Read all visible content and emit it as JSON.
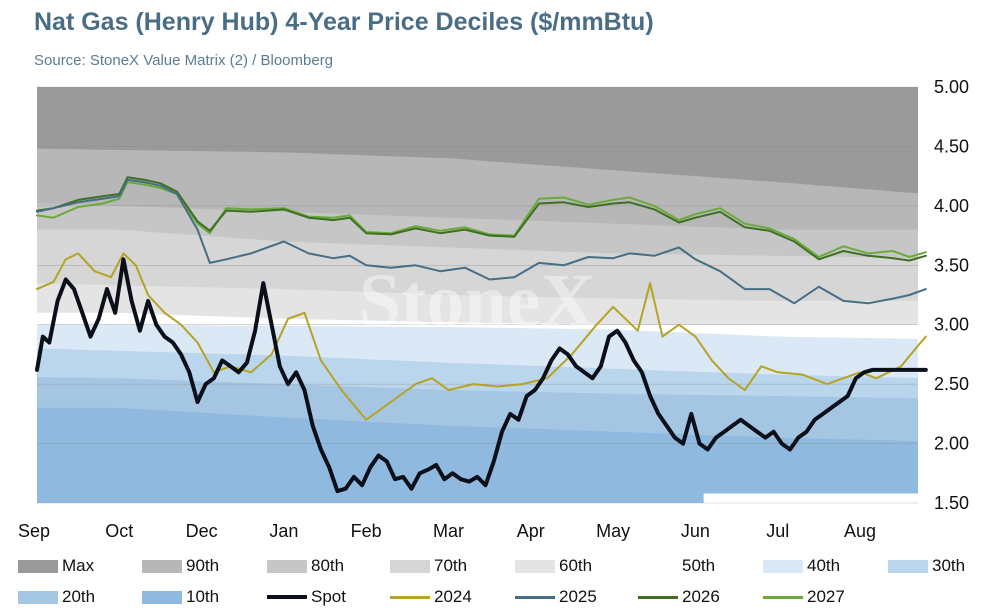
{
  "title": "Nat Gas (Henry Hub) 4-Year Price Deciles ($/mmBtu)",
  "subtitle": "Source: StoneX Value Matrix (2) / Bloomberg",
  "watermark": "StoneX",
  "chart_data": {
    "type": "area",
    "x_months": [
      "Sep",
      "Oct",
      "Dec",
      "Jan",
      "Feb",
      "Mar",
      "Apr",
      "May",
      "Jun",
      "Jul",
      "Aug"
    ],
    "x_month_positions": [
      0,
      1,
      2,
      3,
      4,
      5,
      6,
      7,
      8,
      9,
      10
    ],
    "y_ticks": [
      "5.00",
      "4.50",
      "4.00",
      "3.50",
      "3.00",
      "2.50",
      "2.00",
      "1.50"
    ],
    "ylim": [
      1.5,
      5.0
    ],
    "grid": true,
    "legend_position": "bottom",
    "deciles": [
      {
        "name": "Max",
        "color": "#9a9a9a",
        "x": [
          0,
          10.8
        ],
        "values": [
          5.0,
          5.0
        ]
      },
      {
        "name": "90th",
        "color": "#b7b7b7",
        "x": [
          0,
          1,
          3,
          5,
          7,
          9,
          10.8
        ],
        "values": [
          4.48,
          4.47,
          4.45,
          4.4,
          4.3,
          4.2,
          4.1
        ]
      },
      {
        "name": "80th",
        "color": "#c6c6c6",
        "x": [
          0,
          1,
          3,
          5,
          7,
          9,
          10.8
        ],
        "values": [
          4.02,
          4.0,
          3.95,
          3.9,
          3.85,
          3.8,
          3.8
        ]
      },
      {
        "name": "70th",
        "color": "#d6d6d6",
        "x": [
          0,
          1,
          3,
          5,
          7,
          9,
          10.8
        ],
        "values": [
          3.8,
          3.8,
          3.7,
          3.65,
          3.6,
          3.58,
          3.56
        ]
      },
      {
        "name": "60th",
        "color": "#e4e4e4",
        "x": [
          0,
          1,
          3,
          5,
          7,
          9,
          10.8
        ],
        "values": [
          3.35,
          3.33,
          3.3,
          3.25,
          3.22,
          3.2,
          3.2
        ]
      },
      {
        "name": "50th",
        "color": "#ffffff",
        "x": [
          0,
          1,
          3,
          5,
          7,
          9,
          10.8
        ],
        "values": [
          3.1,
          3.1,
          3.05,
          3.02,
          3.0,
          3.0,
          3.0
        ]
      },
      {
        "name": "40th",
        "color": "#dbe8f5",
        "x": [
          0,
          1,
          3,
          5,
          7,
          9,
          10.8
        ],
        "values": [
          3.0,
          3.0,
          2.99,
          2.98,
          2.96,
          2.9,
          2.88
        ]
      },
      {
        "name": "30th",
        "color": "#bad6ec",
        "x": [
          0,
          1,
          3,
          5,
          7,
          9,
          10.8
        ],
        "values": [
          2.8,
          2.78,
          2.74,
          2.68,
          2.63,
          2.58,
          2.55
        ]
      },
      {
        "name": "20th",
        "color": "#a5c6e3",
        "x": [
          0,
          1,
          3,
          5,
          7,
          9,
          10.8
        ],
        "values": [
          2.56,
          2.55,
          2.5,
          2.45,
          2.42,
          2.4,
          2.38
        ]
      },
      {
        "name": "10th",
        "color": "#8fb9de",
        "x": [
          0,
          1,
          3,
          5,
          7,
          9,
          10.8
        ],
        "values": [
          2.3,
          2.3,
          2.22,
          2.15,
          2.1,
          2.05,
          2.02
        ]
      }
    ],
    "min_floor": {
      "color": "#ffffff",
      "x": [
        8.1,
        10.8
      ],
      "values": [
        1.58,
        1.58
      ]
    },
    "series": [
      {
        "name": "2027",
        "color": "#6aaa3a",
        "width": 2,
        "x": [
          0,
          0.2,
          0.5,
          0.8,
          1.0,
          1.1,
          1.3,
          1.5,
          1.7,
          1.95,
          2.1,
          2.3,
          2.6,
          3.0,
          3.3,
          3.6,
          3.8,
          4.0,
          4.3,
          4.6,
          4.9,
          5.2,
          5.5,
          5.8,
          6.1,
          6.4,
          6.7,
          7.0,
          7.2,
          7.5,
          7.8,
          8.0,
          8.3,
          8.6,
          8.9,
          9.2,
          9.5,
          9.8,
          10.1,
          10.4,
          10.6,
          10.8
        ],
        "values": [
          3.92,
          3.9,
          3.99,
          4.02,
          4.06,
          4.2,
          4.18,
          4.15,
          4.1,
          3.85,
          3.77,
          3.98,
          3.97,
          3.98,
          3.91,
          3.9,
          3.92,
          3.78,
          3.77,
          3.83,
          3.79,
          3.82,
          3.76,
          3.75,
          4.06,
          4.07,
          4.01,
          4.05,
          4.07,
          4.0,
          3.88,
          3.93,
          3.98,
          3.85,
          3.81,
          3.72,
          3.57,
          3.66,
          3.6,
          3.62,
          3.57,
          3.61
        ]
      },
      {
        "name": "2026",
        "color": "#3f6e25",
        "width": 2,
        "x": [
          0,
          0.2,
          0.5,
          0.8,
          1.0,
          1.1,
          1.3,
          1.5,
          1.7,
          1.95,
          2.1,
          2.3,
          2.6,
          3.0,
          3.3,
          3.6,
          3.8,
          4.0,
          4.3,
          4.6,
          4.9,
          5.2,
          5.5,
          5.8,
          6.1,
          6.4,
          6.7,
          7.0,
          7.2,
          7.5,
          7.8,
          8.0,
          8.3,
          8.6,
          8.9,
          9.2,
          9.5,
          9.8,
          10.1,
          10.4,
          10.6,
          10.8
        ],
        "values": [
          3.96,
          3.98,
          4.05,
          4.08,
          4.1,
          4.24,
          4.22,
          4.19,
          4.12,
          3.87,
          3.79,
          3.96,
          3.95,
          3.97,
          3.9,
          3.88,
          3.9,
          3.77,
          3.76,
          3.81,
          3.77,
          3.8,
          3.75,
          3.74,
          4.02,
          4.03,
          3.99,
          4.02,
          4.03,
          3.97,
          3.86,
          3.9,
          3.95,
          3.82,
          3.79,
          3.7,
          3.55,
          3.62,
          3.58,
          3.56,
          3.54,
          3.58
        ]
      },
      {
        "name": "2025",
        "color": "#466e85",
        "width": 2,
        "x": [
          0,
          0.2,
          0.5,
          0.8,
          1.0,
          1.1,
          1.3,
          1.5,
          1.7,
          1.95,
          2.1,
          2.3,
          2.6,
          3.0,
          3.3,
          3.6,
          3.8,
          4.0,
          4.3,
          4.6,
          4.9,
          5.2,
          5.5,
          5.8,
          6.1,
          6.4,
          6.7,
          7.0,
          7.2,
          7.5,
          7.8,
          8.0,
          8.3,
          8.6,
          8.9,
          9.2,
          9.5,
          9.8,
          10.1,
          10.4,
          10.6,
          10.8
        ],
        "values": [
          3.95,
          3.98,
          4.03,
          4.06,
          4.08,
          4.22,
          4.2,
          4.17,
          4.1,
          3.8,
          3.52,
          3.55,
          3.6,
          3.7,
          3.6,
          3.56,
          3.58,
          3.5,
          3.48,
          3.5,
          3.45,
          3.48,
          3.38,
          3.4,
          3.52,
          3.5,
          3.57,
          3.56,
          3.6,
          3.58,
          3.65,
          3.55,
          3.45,
          3.3,
          3.3,
          3.18,
          3.32,
          3.2,
          3.18,
          3.22,
          3.25,
          3.3
        ]
      },
      {
        "name": "2024",
        "color": "#b5a325",
        "width": 2,
        "x": [
          0,
          0.2,
          0.35,
          0.5,
          0.7,
          0.9,
          1.05,
          1.2,
          1.35,
          1.55,
          1.75,
          1.95,
          2.15,
          2.35,
          2.6,
          2.85,
          3.05,
          3.25,
          3.45,
          3.7,
          4.0,
          4.2,
          4.4,
          4.6,
          4.8,
          5.0,
          5.3,
          5.6,
          5.9,
          6.2,
          6.5,
          6.8,
          7.0,
          7.15,
          7.3,
          7.45,
          7.6,
          7.8,
          8.0,
          8.2,
          8.4,
          8.6,
          8.8,
          9.0,
          9.3,
          9.6,
          9.8,
          10.0,
          10.2,
          10.5,
          10.7,
          10.8
        ],
        "values": [
          3.3,
          3.36,
          3.55,
          3.6,
          3.45,
          3.4,
          3.6,
          3.5,
          3.25,
          3.1,
          3.0,
          2.85,
          2.6,
          2.65,
          2.6,
          2.75,
          3.05,
          3.1,
          2.7,
          2.45,
          2.2,
          2.3,
          2.4,
          2.5,
          2.55,
          2.45,
          2.5,
          2.48,
          2.5,
          2.55,
          2.75,
          3.0,
          3.15,
          3.05,
          2.95,
          3.35,
          2.9,
          3.0,
          2.9,
          2.7,
          2.55,
          2.45,
          2.65,
          2.6,
          2.58,
          2.5,
          2.55,
          2.6,
          2.55,
          2.65,
          2.82,
          2.9
        ]
      },
      {
        "name": "Spot",
        "color": "#0b0f1a",
        "width": 4,
        "x": [
          0,
          0.07,
          0.15,
          0.25,
          0.35,
          0.45,
          0.55,
          0.65,
          0.75,
          0.85,
          0.95,
          1.05,
          1.15,
          1.25,
          1.35,
          1.45,
          1.55,
          1.65,
          1.75,
          1.85,
          1.95,
          2.05,
          2.15,
          2.25,
          2.35,
          2.45,
          2.55,
          2.65,
          2.75,
          2.85,
          2.95,
          3.05,
          3.15,
          3.25,
          3.35,
          3.45,
          3.55,
          3.65,
          3.75,
          3.85,
          3.95,
          4.05,
          4.15,
          4.25,
          4.35,
          4.45,
          4.55,
          4.65,
          4.75,
          4.85,
          4.95,
          5.05,
          5.15,
          5.25,
          5.35,
          5.45,
          5.55,
          5.65,
          5.75,
          5.85,
          5.95,
          6.05,
          6.15,
          6.25,
          6.35,
          6.45,
          6.55,
          6.65,
          6.75,
          6.85,
          6.95,
          7.05,
          7.15,
          7.25,
          7.35,
          7.45,
          7.55,
          7.65,
          7.75,
          7.85,
          7.95,
          8.05,
          8.15,
          8.25,
          8.35,
          8.45,
          8.55,
          8.65,
          8.75,
          8.85,
          8.95,
          9.05,
          9.15,
          9.25,
          9.35,
          9.45,
          9.55,
          9.65,
          9.75,
          9.85,
          9.95,
          10.05,
          10.15,
          10.25,
          10.35,
          10.45,
          10.55,
          10.65,
          10.75,
          10.8
        ],
        "values": [
          2.62,
          2.9,
          2.85,
          3.2,
          3.38,
          3.3,
          3.1,
          2.9,
          3.05,
          3.3,
          3.1,
          3.55,
          3.2,
          2.95,
          3.2,
          3.0,
          2.9,
          2.85,
          2.75,
          2.6,
          2.35,
          2.5,
          2.55,
          2.7,
          2.65,
          2.6,
          2.68,
          2.95,
          3.35,
          3.0,
          2.65,
          2.5,
          2.6,
          2.45,
          2.15,
          1.95,
          1.8,
          1.6,
          1.62,
          1.72,
          1.65,
          1.8,
          1.9,
          1.85,
          1.7,
          1.72,
          1.62,
          1.75,
          1.78,
          1.82,
          1.7,
          1.75,
          1.7,
          1.68,
          1.72,
          1.65,
          1.85,
          2.1,
          2.25,
          2.2,
          2.4,
          2.45,
          2.55,
          2.7,
          2.8,
          2.75,
          2.65,
          2.6,
          2.55,
          2.65,
          2.9,
          2.95,
          2.85,
          2.7,
          2.6,
          2.4,
          2.25,
          2.15,
          2.05,
          2.0,
          2.25,
          2.0,
          1.95,
          2.05,
          2.1,
          2.15,
          2.2,
          2.15,
          2.1,
          2.05,
          2.1,
          2.0,
          1.95,
          2.05,
          2.1,
          2.2,
          2.25,
          2.3,
          2.35,
          2.4,
          2.55,
          2.6,
          2.62,
          2.62,
          2.62,
          2.62,
          2.62,
          2.62,
          2.62,
          2.62
        ]
      }
    ]
  },
  "legend": [
    {
      "label": "Max",
      "kind": "swatch",
      "color": "#9a9a9a"
    },
    {
      "label": "90th",
      "kind": "swatch",
      "color": "#b7b7b7"
    },
    {
      "label": "80th",
      "kind": "swatch",
      "color": "#c6c6c6"
    },
    {
      "label": "70th",
      "kind": "swatch",
      "color": "#d6d6d6"
    },
    {
      "label": "60th",
      "kind": "swatch",
      "color": "#e4e4e4"
    },
    {
      "label": "50th",
      "kind": "swatch",
      "color": "#ffffff"
    },
    {
      "label": "40th",
      "kind": "swatch",
      "color": "#dbe8f5"
    },
    {
      "label": "30th",
      "kind": "swatch",
      "color": "#bad6ec"
    },
    {
      "label": "20th",
      "kind": "swatch",
      "color": "#a5c6e3"
    },
    {
      "label": "10th",
      "kind": "swatch",
      "color": "#8fb9de"
    },
    {
      "label": "Spot",
      "kind": "line",
      "color": "#0b0f1a"
    },
    {
      "label": "2024",
      "kind": "line",
      "color": "#b5a325"
    },
    {
      "label": "2025",
      "kind": "line",
      "color": "#466e85"
    },
    {
      "label": "2026",
      "kind": "line",
      "color": "#3f6e25"
    },
    {
      "label": "2027",
      "kind": "line",
      "color": "#6aaa3a"
    }
  ]
}
